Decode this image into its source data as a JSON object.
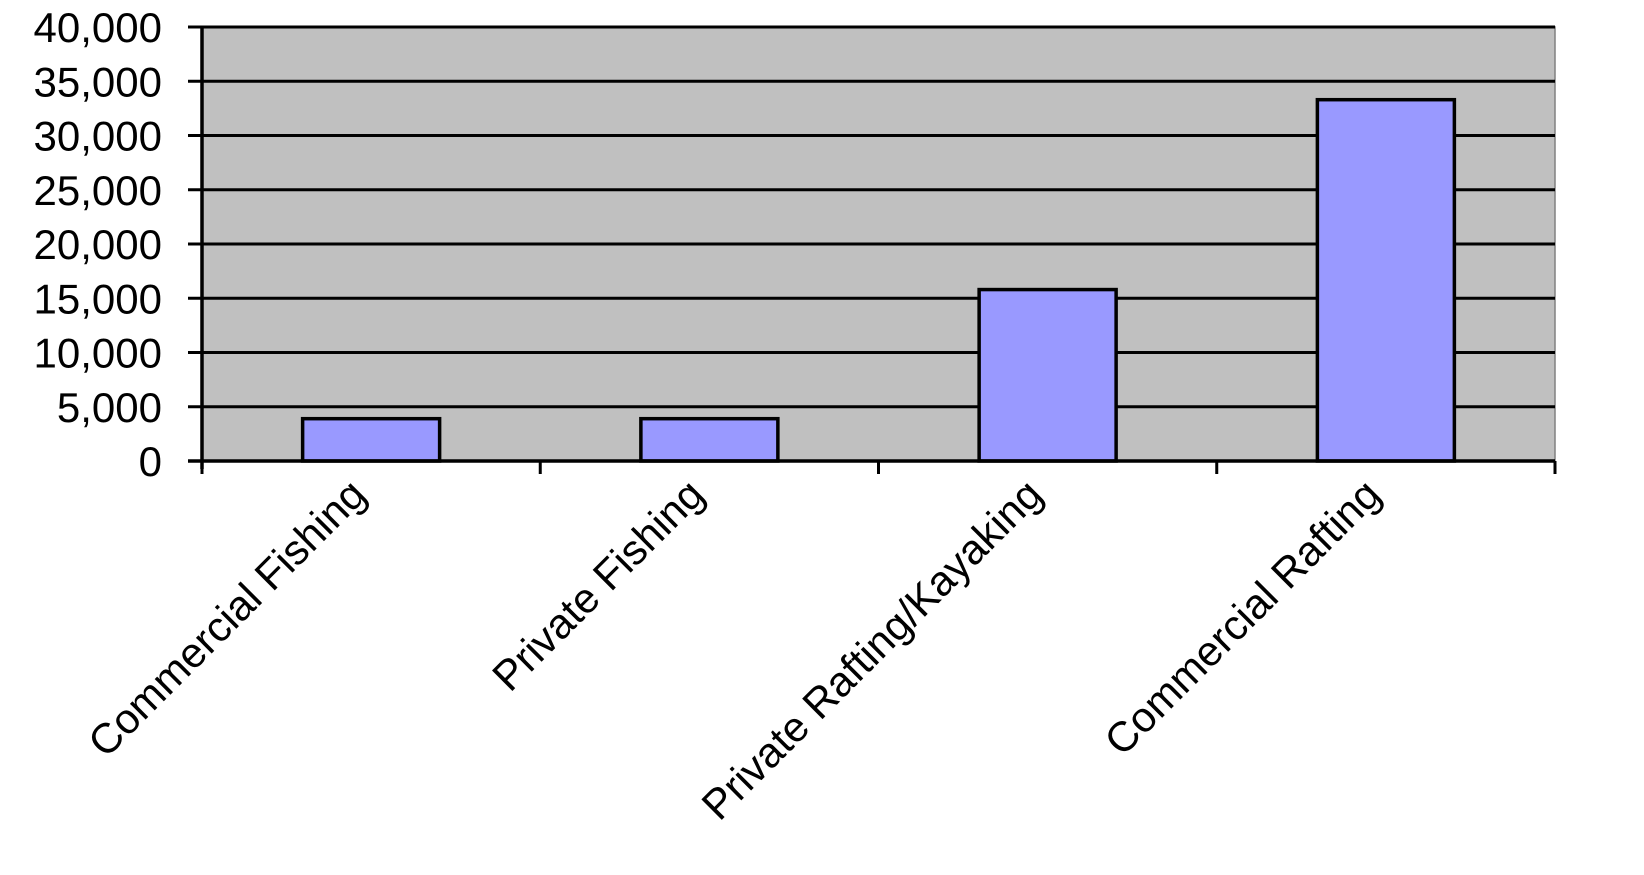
{
  "chart_data": {
    "type": "bar",
    "title": "",
    "xlabel": "",
    "ylabel": "",
    "categories": [
      "Commercial Fishing",
      "Private Fishing",
      "Private Rafting/Kayaking",
      "Commercial Rafting"
    ],
    "values": [
      3900,
      3900,
      15800,
      33300
    ],
    "ylim": [
      0,
      40000
    ],
    "y_ticks": [
      "0",
      "5,000",
      "10,000",
      "15,000",
      "20,000",
      "25,000",
      "30,000",
      "35,000",
      "40,000"
    ],
    "y_tick_values": [
      0,
      5000,
      10000,
      15000,
      20000,
      25000,
      30000,
      35000,
      40000
    ],
    "grid": true,
    "legend": "none",
    "colors": {
      "bar_fill": "#9999ff",
      "plot_background": "#c0c0c0",
      "gridline": "#000000",
      "axis": "#000000"
    }
  }
}
